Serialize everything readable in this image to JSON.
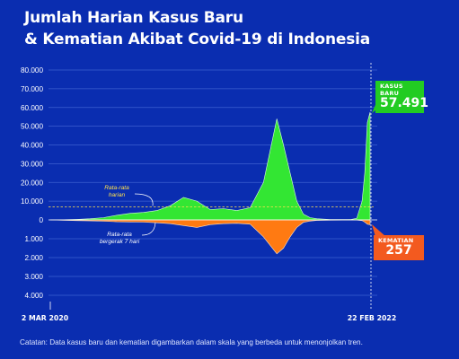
{
  "header": {
    "title_line1": "Jumlah Harian Kasus Baru",
    "title_line2": "& Kematian Akibat Covid-19 di Indonesia"
  },
  "callouts": {
    "cases_label": "KASUS BARU",
    "cases_value": "57.491",
    "deaths_label": "KEMATIAN",
    "deaths_value": "257"
  },
  "annotations": {
    "avg_daily_l1": "Rata-rata",
    "avg_daily_l2": "harian",
    "avg_7day_l1": "Rata-rata",
    "avg_7day_l2": "bergerak 7 hari"
  },
  "footnote": "Catatan: Data kasus baru dan kematian digambarkan dalam skala yang berbeda untuk menonjolkan tren.",
  "colors": {
    "background": "#0a2db0",
    "cases": "#33e633",
    "deaths": "#ff7a12",
    "grid": "#3c5fd0",
    "callout_cases": "#22cc22",
    "callout_deaths": "#f35a1f"
  },
  "chart_data": {
    "type": "area",
    "x_start_label": "2 MAR 2020",
    "x_end_label": "22 FEB 2022",
    "x_months": [
      0,
      1,
      2,
      3,
      4,
      5,
      6,
      7,
      8,
      9,
      10,
      11,
      12,
      13,
      14,
      15,
      16,
      17,
      18,
      19,
      19.5,
      20,
      20.5,
      21,
      21.5,
      22,
      22.5,
      23,
      24
    ],
    "cases_y_ticks": [
      "0",
      "10.000",
      "20.000",
      "30.000",
      "40.000",
      "50.000",
      "60.000",
      "70.000",
      "80.000"
    ],
    "cases_ylim": [
      0,
      80000
    ],
    "deaths_y_ticks": [
      "1.000",
      "2.000",
      "3.000",
      "4.000"
    ],
    "deaths_ylim": [
      0,
      4000
    ],
    "cases_daily_average": 7000,
    "series": [
      {
        "name": "KASUS BARU",
        "x": [
          0,
          1,
          2,
          3,
          4,
          5,
          6,
          7,
          8,
          9,
          10,
          11,
          12,
          13,
          14,
          15,
          16,
          17,
          17.5,
          18,
          18.5,
          19,
          19.5,
          20,
          21,
          22,
          22.6,
          23,
          23.4,
          23.6,
          23.8,
          24
        ],
        "values": [
          0,
          100,
          300,
          600,
          1200,
          2500,
          3500,
          4000,
          5000,
          7500,
          12000,
          10000,
          5500,
          6000,
          5000,
          6500,
          20000,
          54000,
          40000,
          25000,
          10000,
          3000,
          1200,
          600,
          250,
          200,
          300,
          800,
          10000,
          25000,
          52000,
          57491
        ]
      },
      {
        "name": "KEMATIAN",
        "x": [
          0,
          1,
          2,
          3,
          4,
          5,
          6,
          7,
          8,
          9,
          10,
          11,
          12,
          13,
          14,
          15,
          16,
          17,
          17.5,
          18,
          18.5,
          19,
          19.5,
          20,
          21,
          22,
          22.6,
          23,
          23.4,
          23.6,
          23.8,
          24
        ],
        "values": [
          0,
          20,
          40,
          50,
          70,
          100,
          110,
          120,
          150,
          200,
          300,
          400,
          250,
          200,
          180,
          230,
          900,
          1800,
          1500,
          900,
          400,
          130,
          60,
          30,
          15,
          10,
          8,
          10,
          40,
          120,
          230,
          257
        ]
      }
    ]
  }
}
